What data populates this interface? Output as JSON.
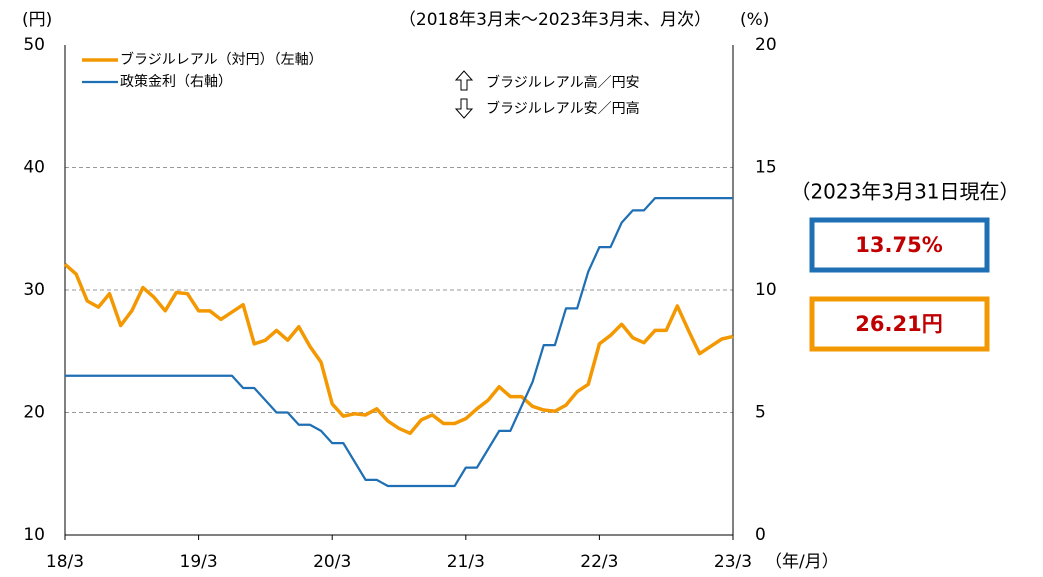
{
  "chart_data": {
    "type": "line",
    "subtitle": "（2018年3月末～2023年3月末、月次）",
    "y_label": "(円)",
    "y2_label": "(%)",
    "x_label": "（年/月）",
    "categories": [
      "18/3",
      null,
      null,
      null,
      null,
      null,
      null,
      null,
      null,
      null,
      null,
      null,
      "19/3",
      null,
      null,
      null,
      null,
      null,
      null,
      null,
      null,
      null,
      null,
      null,
      "20/3",
      null,
      null,
      null,
      null,
      null,
      null,
      null,
      null,
      null,
      null,
      null,
      "21/3",
      null,
      null,
      null,
      null,
      null,
      null,
      null,
      null,
      null,
      null,
      null,
      "22/3",
      null,
      null,
      null,
      null,
      null,
      null,
      null,
      null,
      null,
      null,
      null,
      "23/3"
    ],
    "series": [
      {
        "name": "ブラジルレアル（対円）（左軸）",
        "color": "#f39800",
        "axis": "y",
        "values": [
          32.1,
          31.3,
          29.1,
          28.6,
          29.7,
          27.1,
          28.3,
          30.2,
          29.4,
          28.3,
          29.8,
          29.7,
          28.3,
          28.3,
          27.6,
          28.2,
          28.8,
          25.6,
          25.9,
          26.7,
          25.9,
          27.0,
          25.4,
          24.1,
          20.7,
          19.7,
          19.9,
          19.8,
          20.3,
          19.3,
          18.7,
          18.3,
          19.4,
          19.8,
          19.1,
          19.1,
          19.5,
          20.3,
          21.0,
          22.1,
          21.3,
          21.3,
          20.5,
          20.2,
          20.1,
          20.6,
          21.7,
          22.3,
          25.6,
          26.3,
          27.2,
          26.1,
          25.7,
          26.7,
          26.7,
          28.7,
          26.7,
          24.8,
          25.4,
          26.0,
          26.21
        ]
      },
      {
        "name": "政策金利（右軸）",
        "color": "#1f6fb5",
        "axis": "y2",
        "values": [
          6.5,
          6.5,
          6.5,
          6.5,
          6.5,
          6.5,
          6.5,
          6.5,
          6.5,
          6.5,
          6.5,
          6.5,
          6.5,
          6.5,
          6.5,
          6.5,
          6.0,
          6.0,
          5.5,
          5.0,
          5.0,
          4.5,
          4.5,
          4.25,
          3.75,
          3.75,
          3.0,
          2.25,
          2.25,
          2.0,
          2.0,
          2.0,
          2.0,
          2.0,
          2.0,
          2.0,
          2.75,
          2.75,
          3.5,
          4.25,
          4.25,
          5.25,
          6.25,
          7.75,
          7.75,
          9.25,
          9.25,
          10.75,
          11.75,
          11.75,
          12.75,
          13.25,
          13.25,
          13.75,
          13.75,
          13.75,
          13.75,
          13.75,
          13.75,
          13.75,
          13.75
        ]
      }
    ],
    "ylim": [
      10,
      50
    ],
    "yticks": [
      10,
      20,
      30,
      40,
      50
    ],
    "y2lim": [
      0,
      20
    ],
    "y2ticks": [
      0,
      5,
      10,
      15,
      20
    ],
    "grid": true,
    "annotations": [
      "ブラジルレアル高／円安",
      "ブラジルレアル安／円高"
    ],
    "as_of": "（2023年3月31日現在）",
    "callouts": [
      {
        "text": "13.75%",
        "color": "#1f6fb5"
      },
      {
        "text": "26.21円",
        "color": "#f39800"
      }
    ]
  }
}
